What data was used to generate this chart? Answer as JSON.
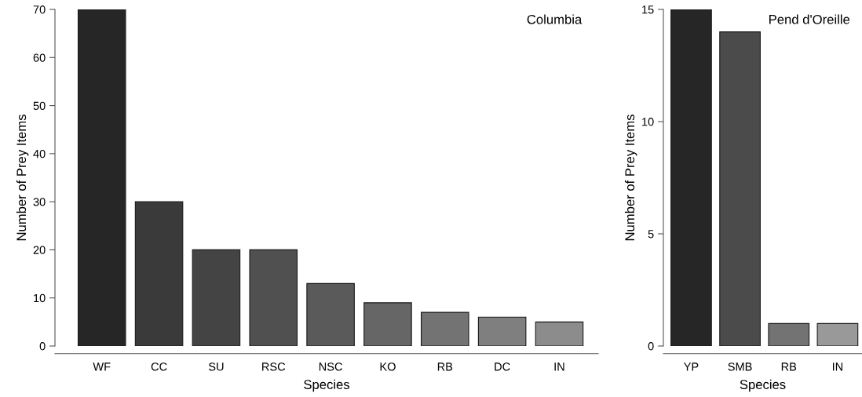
{
  "chart_data": [
    {
      "type": "bar",
      "title": "Columbia",
      "xlabel": "Species",
      "ylabel": "Number of Prey Items",
      "categories": [
        "WF",
        "CC",
        "SU",
        "RSC",
        "NSC",
        "KO",
        "RB",
        "DC",
        "IN"
      ],
      "values": [
        70,
        30,
        20,
        20,
        13,
        9,
        7,
        6,
        5
      ],
      "colors": [
        "#262626",
        "#3a3a3a",
        "#444444",
        "#505050",
        "#5a5a5a",
        "#666666",
        "#737373",
        "#7f7f7f",
        "#8c8c8c"
      ],
      "ylim": [
        0,
        70
      ],
      "yticks": [
        0,
        10,
        20,
        30,
        40,
        50,
        60,
        70
      ],
      "grid": false
    },
    {
      "type": "bar",
      "title": "Pend d'Oreille",
      "xlabel": "Species",
      "ylabel": "Number of Prey Items",
      "categories": [
        "YP",
        "SMB",
        "RB",
        "IN"
      ],
      "values": [
        15,
        14,
        1,
        1
      ],
      "colors": [
        "#262626",
        "#4b4b4b",
        "#737373",
        "#999999"
      ],
      "ylim": [
        0,
        15
      ],
      "yticks": [
        0,
        5,
        10,
        15
      ],
      "grid": false
    }
  ]
}
